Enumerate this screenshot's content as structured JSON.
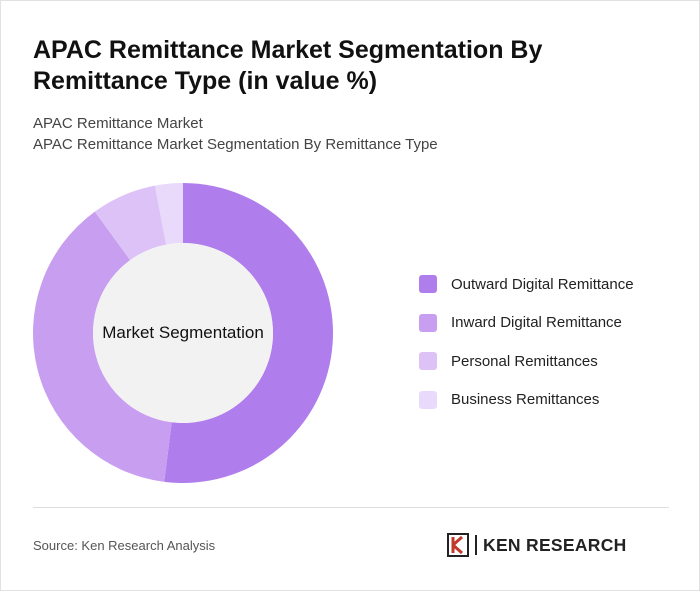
{
  "title": "APAC Remittance Market Segmentation By Remittance Type (in value %)",
  "subtitle_lines": [
    "APAC Remittance Market",
    "APAC Remittance Market Segmentation By Remittance Type"
  ],
  "center_label": "Market Segmentation",
  "source": "Source: Ken Research Analysis",
  "logo": {
    "text": "KEN RESEARCH",
    "icon": "ken-research-logo-icon"
  },
  "chart_data": {
    "type": "pie",
    "variant": "donut",
    "categories": [
      "Outward Digital Remittance",
      "Inward Digital Remittance",
      "Personal Remittances",
      "Business Remittances"
    ],
    "values": [
      52,
      38,
      7,
      3
    ],
    "colors": [
      "#b07eec",
      "#c89ef0",
      "#dcc2f6",
      "#e9d9fa"
    ],
    "legend": "right"
  }
}
